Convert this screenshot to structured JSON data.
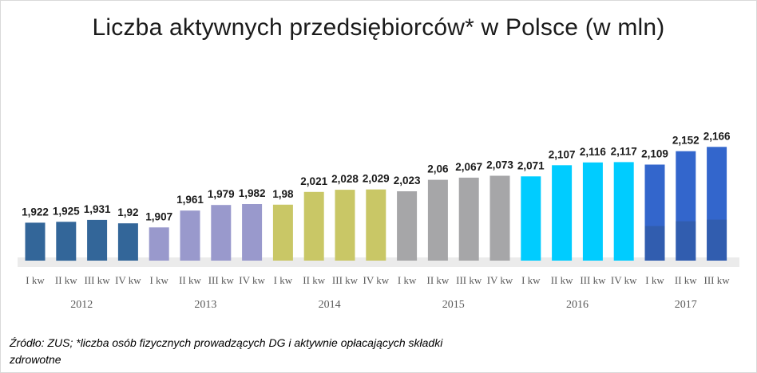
{
  "chart_data": {
    "type": "bar",
    "title": "Liczba aktywnych przedsiębiorców*  w Polsce (w mln)",
    "xlabel": "",
    "ylabel": "",
    "ylim": [
      1.8,
      2.2
    ],
    "grid": false,
    "legend": "none",
    "categories": [
      "I kw",
      "II kw",
      "III kw",
      "IV kw",
      "I kw",
      "II kw",
      "III kw",
      "IV kw",
      "I kw",
      "II kw",
      "III kw",
      "IV kw",
      "I kw",
      "II kw",
      "III kw",
      "IV kw",
      "I kw",
      "II kw",
      "III kw",
      "IV kw",
      "I kw",
      "II kw",
      "III kw"
    ],
    "years": [
      "2012",
      "2013",
      "2014",
      "2015",
      "2016",
      "2017"
    ],
    "values": [
      1.922,
      1.925,
      1.931,
      1.92,
      1.907,
      1.961,
      1.979,
      1.982,
      1.98,
      2.021,
      2.028,
      2.029,
      2.023,
      2.06,
      2.067,
      2.073,
      2.071,
      2.107,
      2.116,
      2.117,
      2.109,
      2.152,
      2.166
    ],
    "value_labels": [
      "1,922",
      "1,925",
      "1,931",
      "1,92",
      "1,907",
      "1,961",
      "1,979",
      "1,982",
      "1,98",
      "2,021",
      "2,028",
      "2,029",
      "2,023",
      "2,06",
      "2,067",
      "2,073",
      "2,071",
      "2,107",
      "2,116",
      "2,117",
      "2,109",
      "2,152",
      "2,166"
    ],
    "year_colors": [
      "#336699",
      "#9999cc",
      "#c9c766",
      "#a6a6a8",
      "#00ccff",
      "#3366cc"
    ],
    "year_group_sizes": [
      4,
      4,
      4,
      4,
      4,
      3
    ]
  },
  "footer": {
    "source_line1": "Źródło: ZUS; *liczba osób fizycznych prowadzących DG i aktywnie opłacających składki",
    "source_line2": "zdrowotne"
  }
}
